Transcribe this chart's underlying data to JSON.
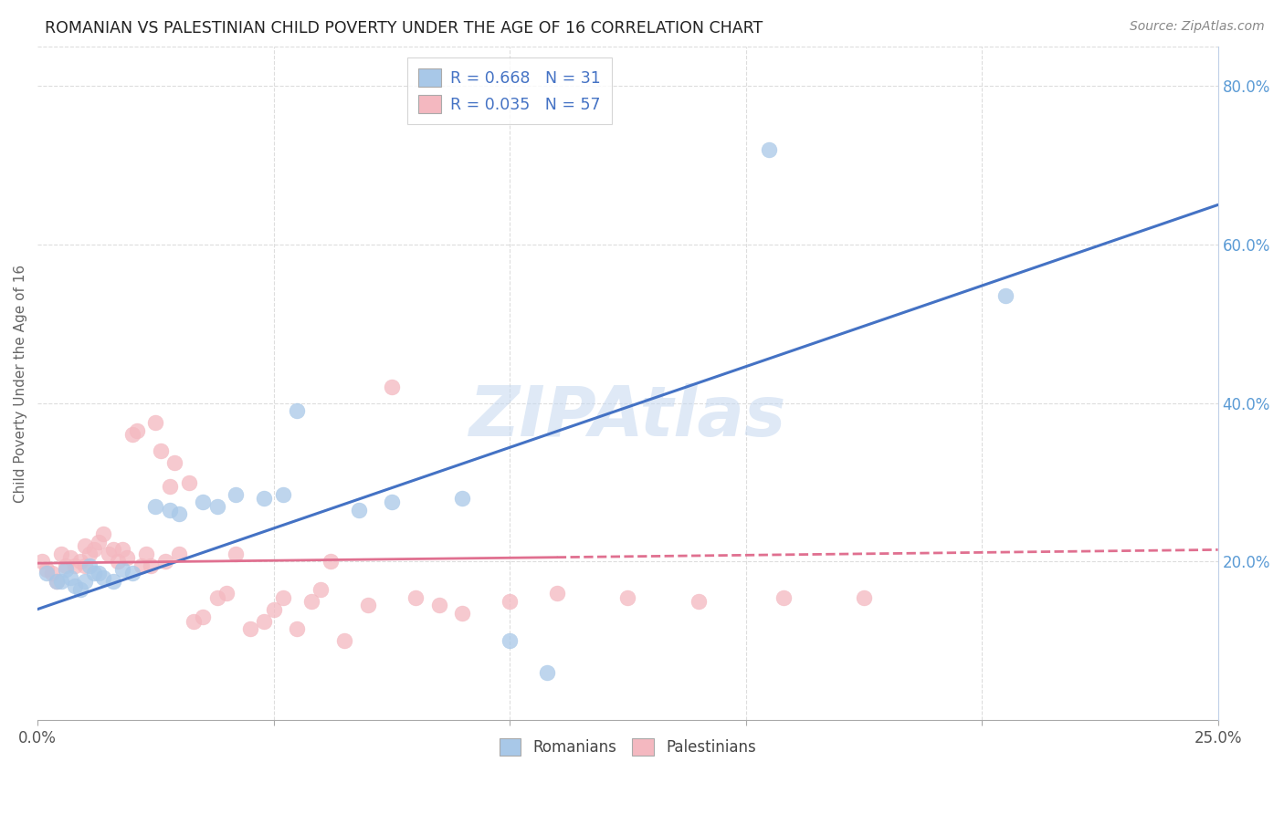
{
  "title": "ROMANIAN VS PALESTINIAN CHILD POVERTY UNDER THE AGE OF 16 CORRELATION CHART",
  "source": "Source: ZipAtlas.com",
  "ylabel": "Child Poverty Under the Age of 16",
  "xlim": [
    0.0,
    0.25
  ],
  "ylim": [
    0.0,
    0.85
  ],
  "romanians_R": "0.668",
  "romanians_N": "31",
  "palestinians_R": "0.035",
  "palestinians_N": "57",
  "romanian_color": "#a8c8e8",
  "palestinian_color": "#f4b8c0",
  "romanian_line_color": "#4472c4",
  "palestinian_line_color": "#e07090",
  "watermark": "ZIPAtlas",
  "rom_line_x0": 0.0,
  "rom_line_y0": 0.14,
  "rom_line_x1": 0.25,
  "rom_line_y1": 0.65,
  "pal_line_x0": 0.0,
  "pal_line_y0": 0.198,
  "pal_line_x1": 0.25,
  "pal_line_y1": 0.215,
  "pal_line_solid_end": 0.11,
  "romanians_x": [
    0.002,
    0.004,
    0.005,
    0.006,
    0.007,
    0.008,
    0.009,
    0.01,
    0.011,
    0.012,
    0.013,
    0.014,
    0.016,
    0.018,
    0.02,
    0.025,
    0.028,
    0.03,
    0.035,
    0.038,
    0.042,
    0.048,
    0.052,
    0.055,
    0.068,
    0.075,
    0.09,
    0.1,
    0.108,
    0.155,
    0.205
  ],
  "romanians_y": [
    0.185,
    0.175,
    0.175,
    0.19,
    0.18,
    0.17,
    0.165,
    0.175,
    0.195,
    0.185,
    0.185,
    0.18,
    0.175,
    0.19,
    0.185,
    0.27,
    0.265,
    0.26,
    0.275,
    0.27,
    0.285,
    0.28,
    0.285,
    0.39,
    0.265,
    0.275,
    0.28,
    0.1,
    0.06,
    0.72,
    0.535
  ],
  "palestinians_x": [
    0.001,
    0.002,
    0.003,
    0.004,
    0.005,
    0.006,
    0.007,
    0.008,
    0.009,
    0.01,
    0.01,
    0.011,
    0.012,
    0.013,
    0.014,
    0.015,
    0.016,
    0.017,
    0.018,
    0.019,
    0.02,
    0.021,
    0.022,
    0.023,
    0.024,
    0.025,
    0.026,
    0.027,
    0.028,
    0.029,
    0.03,
    0.032,
    0.033,
    0.035,
    0.038,
    0.04,
    0.042,
    0.045,
    0.048,
    0.05,
    0.052,
    0.055,
    0.058,
    0.06,
    0.062,
    0.065,
    0.07,
    0.075,
    0.08,
    0.085,
    0.09,
    0.1,
    0.11,
    0.125,
    0.14,
    0.158,
    0.175
  ],
  "palestinians_y": [
    0.2,
    0.19,
    0.185,
    0.175,
    0.21,
    0.195,
    0.205,
    0.195,
    0.2,
    0.195,
    0.22,
    0.21,
    0.215,
    0.225,
    0.235,
    0.21,
    0.215,
    0.2,
    0.215,
    0.205,
    0.36,
    0.365,
    0.195,
    0.21,
    0.195,
    0.375,
    0.34,
    0.2,
    0.295,
    0.325,
    0.21,
    0.3,
    0.125,
    0.13,
    0.155,
    0.16,
    0.21,
    0.115,
    0.125,
    0.14,
    0.155,
    0.115,
    0.15,
    0.165,
    0.2,
    0.1,
    0.145,
    0.42,
    0.155,
    0.145,
    0.135,
    0.15,
    0.16,
    0.155,
    0.15,
    0.155,
    0.155
  ]
}
